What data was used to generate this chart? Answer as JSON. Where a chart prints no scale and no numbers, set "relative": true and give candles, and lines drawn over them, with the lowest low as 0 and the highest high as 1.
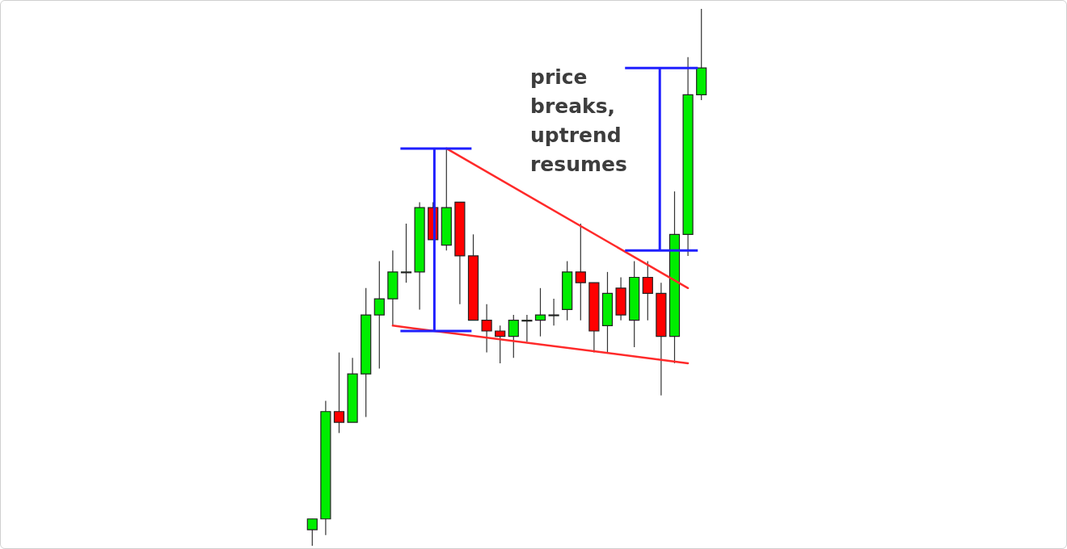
{
  "chart_data": {
    "type": "candlestick",
    "relative": true,
    "tick_labels": false,
    "categories": [
      null,
      null,
      null,
      null,
      null,
      null,
      null,
      null,
      null,
      null,
      null,
      null,
      null,
      null,
      null,
      null,
      null,
      null,
      null,
      null,
      null,
      null,
      null,
      null,
      null,
      null,
      null,
      null,
      null,
      null
    ],
    "annotations": [
      "price breaks, uptrend resumes"
    ],
    "ohlc": [
      [
        0.03,
        0.05,
        0,
        0.05
      ],
      [
        0.05,
        0.27,
        0.02,
        0.25
      ],
      [
        0.25,
        0.36,
        0.21,
        0.23
      ],
      [
        0.23,
        0.35,
        0.23,
        0.32
      ],
      [
        0.32,
        0.48,
        0.24,
        0.43
      ],
      [
        0.43,
        0.53,
        0.33,
        0.46
      ],
      [
        0.46,
        0.55,
        0.41,
        0.51
      ],
      [
        0.51,
        0.6,
        0.49,
        0.51
      ],
      [
        0.51,
        0.64,
        0.44,
        0.63
      ],
      [
        0.63,
        0.64,
        0.57,
        0.57
      ],
      [
        0.56,
        0.74,
        0.55,
        0.63
      ],
      [
        0.64,
        0.64,
        0.45,
        0.54
      ],
      [
        0.54,
        0.58,
        0.42,
        0.42
      ],
      [
        0.42,
        0.45,
        0.36,
        0.4
      ],
      [
        0.4,
        0.41,
        0.34,
        0.39
      ],
      [
        0.39,
        0.43,
        0.35,
        0.42
      ],
      [
        0.42,
        0.43,
        0.38,
        0.42
      ],
      [
        0.42,
        0.48,
        0.39,
        0.43
      ],
      [
        0.43,
        0.46,
        0.41,
        0.43
      ],
      [
        0.44,
        0.53,
        0.42,
        0.51
      ],
      [
        0.51,
        0.6,
        0.42,
        0.49
      ],
      [
        0.49,
        0.49,
        0.36,
        0.4
      ],
      [
        0.41,
        0.51,
        0.36,
        0.47
      ],
      [
        0.48,
        0.5,
        0.42,
        0.43
      ],
      [
        0.42,
        0.53,
        0.37,
        0.5
      ],
      [
        0.5,
        0.53,
        0.42,
        0.47
      ],
      [
        0.47,
        0.49,
        0.28,
        0.39
      ],
      [
        0.39,
        0.66,
        0.34,
        0.58
      ],
      [
        0.58,
        0.91,
        0.54,
        0.84
      ],
      [
        0.84,
        1,
        0.83,
        0.89
      ]
    ],
    "colors": [
      "#00ee00",
      "#00ee00",
      "#ff0000",
      "#00ee00",
      "#00ee00",
      "#00ee00",
      "#00ee00",
      "#00ee00",
      "#00ee00",
      "#ff0000",
      "#00ee00",
      "#ff0000",
      "#ff0000",
      "#ff0000",
      "#ff0000",
      "#00ee00",
      "#00ee00",
      "#00ee00",
      "#00ee00",
      "#00ee00",
      "#ff0000",
      "#ff0000",
      "#00ee00",
      "#ff0000",
      "#00ee00",
      "#ff0000",
      "#ff0000",
      "#00ee00",
      "#00ee00",
      "#00ee00"
    ],
    "series": [
      {
        "type": "line",
        "color": "#ff2a2a",
        "values": [
          null,
          null,
          null,
          null,
          null,
          null,
          null,
          null,
          null,
          null,
          0.74,
          null,
          null,
          null,
          null,
          null,
          null,
          null,
          null,
          null,
          null,
          null,
          null,
          null,
          null,
          null,
          null,
          null,
          0.48,
          null
        ]
      },
      {
        "type": "line",
        "color": "#ff2a2a",
        "values": [
          null,
          null,
          null,
          null,
          null,
          null,
          0.41,
          null,
          null,
          null,
          null,
          null,
          null,
          null,
          null,
          null,
          null,
          null,
          null,
          null,
          null,
          null,
          null,
          null,
          null,
          null,
          null,
          null,
          0.34,
          null
        ]
      }
    ]
  }
}
